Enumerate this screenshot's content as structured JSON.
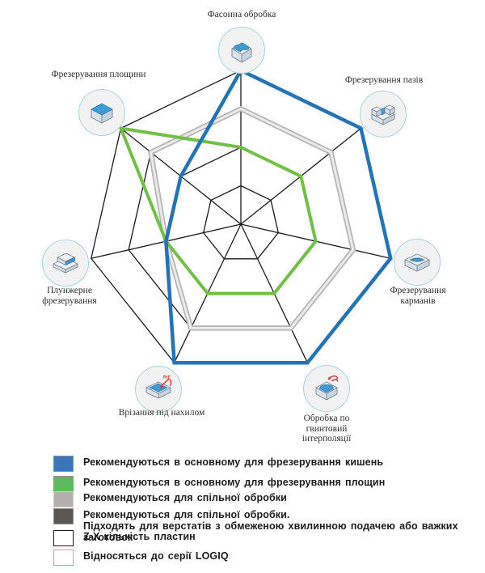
{
  "chart_data": {
    "type": "radar",
    "scale_max": 4,
    "grid_color": "#1a1a1a",
    "axes": [
      {
        "id": "shaped-machining",
        "label": "Фасонна обробка",
        "lines": [
          "Фасонна обробка"
        ]
      },
      {
        "id": "slot-milling",
        "label": "Фрезерування пазів",
        "lines": [
          "Фрезерування пазів"
        ]
      },
      {
        "id": "pocket-milling",
        "label": "Фрезерування карманів",
        "lines": [
          "Фрезерування",
          "карманів"
        ]
      },
      {
        "id": "helical-interpolation",
        "label": "Обробка по гвинтовий інтерполяції",
        "lines": [
          "Обробка по",
          "гвинтовий",
          "інтерполяції"
        ]
      },
      {
        "id": "ramping",
        "label": "Врізання під нахилом",
        "lines": [
          "Врізання під нахилом"
        ]
      },
      {
        "id": "plunge-milling",
        "label": "Плунжерне фрезерування",
        "lines": [
          "Плунжерне",
          "фрезерування"
        ]
      },
      {
        "id": "face-milling",
        "label": "Фрезерування площини",
        "lines": [
          "Фрезерування площини"
        ]
      }
    ],
    "series": [
      {
        "name": "Рекомендуються в основному для фрезерування кишень",
        "color": "#2273b8",
        "width": 4.5,
        "values": [
          4,
          4,
          4,
          4,
          4,
          2,
          2
        ]
      },
      {
        "name": "Рекомендуються в основному для фрезерування площин",
        "color": "#71bf44",
        "width": 4.0,
        "values": [
          2,
          2,
          2,
          2,
          2,
          2,
          4
        ]
      },
      {
        "name": "Рекомендуються для спільної обробки",
        "color": "#b5b5b5",
        "inner_color": "#ebebeb",
        "width": 6.5,
        "values": [
          3,
          3,
          3,
          3,
          3,
          2,
          3
        ]
      }
    ]
  },
  "legend": {
    "items": [
      {
        "fill": "#3d76b8",
        "border": "#909090",
        "label": "Рекомендуються в основному для фрезерування кишень"
      },
      {
        "fill": "#60b95e",
        "border": "#909090",
        "label": "Рекомендуються в основному для фрезерування площин"
      },
      {
        "fill": "#b2afac",
        "border": "#cfcfcf",
        "label": "Рекомендуються для спільної обробки"
      },
      {
        "fill": "#5c5651",
        "border": "#909090",
        "label": "Рекомендуються для спільної обробки.",
        "label2": "Підходять для верстатів з обмеженою хвилинною подачею або важких заготовок"
      },
      {
        "fill": "#ffffff",
        "border": "#1a1a1a",
        "label": "Z-X кількість пластин"
      },
      {
        "fill": "#ffffff",
        "border": "#f2908d",
        "label": "Відносяться до серії LOGIQ"
      }
    ]
  }
}
